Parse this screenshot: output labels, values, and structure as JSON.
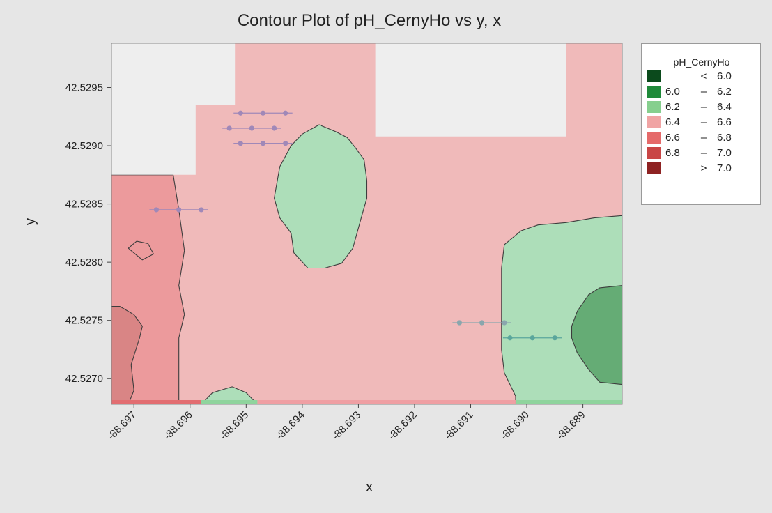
{
  "chart_data": {
    "type": "contour",
    "title": "Contour Plot of pH_CernyHo vs y, x",
    "xlabel": "x",
    "ylabel": "y",
    "xlim": [
      -88.6974,
      -88.6883
    ],
    "ylim": [
      42.52678,
      42.52988
    ],
    "x_ticks": [
      -88.697,
      -88.696,
      -88.695,
      -88.694,
      -88.693,
      -88.692,
      -88.691,
      -88.69,
      -88.689
    ],
    "x_tick_labels": [
      "-88.697",
      "-88.696",
      "-88.695",
      "-88.694",
      "-88.693",
      "-88.692",
      "-88.691",
      "-88.690",
      "-88.689"
    ],
    "y_ticks": [
      42.527,
      42.5275,
      42.528,
      42.5285,
      42.529,
      42.5295
    ],
    "y_tick_labels": [
      "42.5270",
      "42.5275",
      "42.5280",
      "42.5285",
      "42.5290",
      "42.5295"
    ],
    "legend": {
      "title": "pH_CernyHo",
      "position": "right",
      "entries": [
        {
          "lo": "",
          "sym": "<",
          "hi": "6.0",
          "color": "#0b4a1c"
        },
        {
          "lo": "6.0",
          "sym": "–",
          "hi": "6.2",
          "color": "#1f8a3a"
        },
        {
          "lo": "6.2",
          "sym": "–",
          "hi": "6.4",
          "color": "#86cf8e"
        },
        {
          "lo": "6.4",
          "sym": "–",
          "hi": "6.6",
          "color": "#f0a4a4"
        },
        {
          "lo": "6.6",
          "sym": "–",
          "hi": "6.8",
          "color": "#e56a6a"
        },
        {
          "lo": "6.8",
          "sym": "–",
          "hi": "7.0",
          "color": "#c94646"
        },
        {
          "lo": "",
          "sym": ">",
          "hi": "7.0",
          "color": "#8e2222"
        }
      ]
    },
    "regions": [
      {
        "level": "6.4 – 6.6",
        "color": "#f0baba",
        "polygon": [
          [
            -88.6974,
            42.52678
          ],
          [
            -88.6883,
            42.52678
          ],
          [
            -88.6883,
            42.52988
          ],
          [
            -88.6974,
            42.52988
          ]
        ]
      },
      {
        "level": "6.6 – 6.8",
        "color": "#ec9a9c",
        "polygon": [
          [
            -88.6974,
            42.52678
          ],
          [
            -88.6962,
            42.52678
          ],
          [
            -88.6962,
            42.52735
          ],
          [
            -88.6961,
            42.52755
          ],
          [
            -88.6962,
            42.5278
          ],
          [
            -88.6961,
            42.5281
          ],
          [
            -88.6962,
            42.52845
          ],
          [
            -88.6963,
            42.52875
          ],
          [
            -88.6974,
            42.52875
          ]
        ]
      },
      {
        "level": "6.6 – 6.8",
        "color": "#ec9a9c",
        "polygon": [
          [
            -88.6971,
            42.52812
          ],
          [
            -88.69695,
            42.52818
          ],
          [
            -88.69675,
            42.52816
          ],
          [
            -88.69665,
            42.52807
          ],
          [
            -88.69685,
            42.52802
          ],
          [
            -88.697,
            42.52808
          ]
        ]
      },
      {
        "level": "6.8 – 7.0",
        "color": "#d98585",
        "polygon": [
          [
            -88.6974,
            42.52678
          ],
          [
            -88.6971,
            42.52678
          ],
          [
            -88.697,
            42.5269
          ],
          [
            -88.69705,
            42.52712
          ],
          [
            -88.6969,
            42.52735
          ],
          [
            -88.69685,
            42.52745
          ],
          [
            -88.697,
            42.52755
          ],
          [
            -88.69725,
            42.52762
          ],
          [
            -88.6974,
            42.52762
          ]
        ]
      },
      {
        "level": "6.2 – 6.4",
        "color": "#addeb9",
        "polygon": [
          [
            -88.6937,
            42.52918
          ],
          [
            -88.6934,
            42.52912
          ],
          [
            -88.6932,
            42.52907
          ],
          [
            -88.69305,
            42.52898
          ],
          [
            -88.6929,
            42.52888
          ],
          [
            -88.69285,
            42.5287
          ],
          [
            -88.69285,
            42.52855
          ],
          [
            -88.69295,
            42.52838
          ],
          [
            -88.6931,
            42.52812
          ],
          [
            -88.6933,
            42.52799
          ],
          [
            -88.6936,
            42.52795
          ],
          [
            -88.6939,
            42.52795
          ],
          [
            -88.69415,
            42.52808
          ],
          [
            -88.6942,
            42.52825
          ],
          [
            -88.6944,
            42.52838
          ],
          [
            -88.6945,
            42.52855
          ],
          [
            -88.6944,
            42.52882
          ],
          [
            -88.6942,
            42.529
          ],
          [
            -88.694,
            42.5291
          ]
        ]
      },
      {
        "level": "6.2 – 6.4",
        "color": "#addeb9",
        "polygon": [
          [
            -88.6883,
            42.5284
          ],
          [
            -88.6888,
            42.52838
          ],
          [
            -88.6893,
            42.52834
          ],
          [
            -88.6898,
            42.52832
          ],
          [
            -88.6901,
            42.52827
          ],
          [
            -88.6904,
            42.52815
          ],
          [
            -88.69045,
            42.52795
          ],
          [
            -88.69045,
            42.5276
          ],
          [
            -88.69045,
            42.52725
          ],
          [
            -88.6904,
            42.52705
          ],
          [
            -88.6902,
            42.52685
          ],
          [
            -88.6902,
            42.52678
          ],
          [
            -88.6883,
            42.52678
          ]
        ]
      },
      {
        "level": "6.0 – 6.2",
        "color": "#65ac75",
        "polygon": [
          [
            -88.6883,
            42.5278
          ],
          [
            -88.6887,
            42.52778
          ],
          [
            -88.6889,
            42.52772
          ],
          [
            -88.6891,
            42.52758
          ],
          [
            -88.6892,
            42.52745
          ],
          [
            -88.6892,
            42.52735
          ],
          [
            -88.6891,
            42.52722
          ],
          [
            -88.6889,
            42.52708
          ],
          [
            -88.6887,
            42.52697
          ],
          [
            -88.6883,
            42.52695
          ]
        ]
      },
      {
        "level": "6.2 – 6.4",
        "color": "#addeb9",
        "polygon": [
          [
            -88.6958,
            42.52678
          ],
          [
            -88.6956,
            42.52688
          ],
          [
            -88.69525,
            42.52693
          ],
          [
            -88.695,
            42.52688
          ],
          [
            -88.6948,
            42.52678
          ]
        ]
      }
    ],
    "bottom_band": [
      {
        "x_from": -88.6974,
        "x_to": -88.6958,
        "color": "#e26d71"
      },
      {
        "x_from": -88.6958,
        "x_to": -88.6948,
        "color": "#8fd49d"
      },
      {
        "x_from": -88.6948,
        "x_to": -88.6902,
        "color": "#ef9fa3"
      },
      {
        "x_from": -88.6902,
        "x_to": -88.6883,
        "color": "#8fd49d"
      }
    ],
    "masked_regions": [
      {
        "color": "#eeeeee",
        "polygon": [
          [
            -88.6974,
            42.52988
          ],
          [
            -88.6952,
            42.52988
          ],
          [
            -88.6952,
            42.52935
          ],
          [
            -88.6959,
            42.52935
          ],
          [
            -88.6959,
            42.52875
          ],
          [
            -88.6974,
            42.52875
          ]
        ]
      },
      {
        "color": "#eeeeee",
        "polygon": [
          [
            -88.6927,
            42.52988
          ],
          [
            -88.6893,
            42.52988
          ],
          [
            -88.6893,
            42.52908
          ],
          [
            -88.6927,
            42.52908
          ]
        ]
      }
    ],
    "sample_rows": [
      {
        "y": 42.52928,
        "x": [
          -88.6951,
          -88.6947,
          -88.6943
        ],
        "color": "#a088b8"
      },
      {
        "y": 42.52915,
        "x": [
          -88.6953,
          -88.6949,
          -88.6945
        ],
        "color": "#a088b8"
      },
      {
        "y": 42.52902,
        "x": [
          -88.6951,
          -88.6947,
          -88.6943
        ],
        "color": "#a088b8"
      },
      {
        "y": 42.52845,
        "x": [
          -88.6966,
          -88.6962,
          -88.6958
        ],
        "color": "#a088b8"
      },
      {
        "y": 42.52748,
        "x": [
          -88.6912,
          -88.6908,
          -88.6904
        ],
        "color": "#8aa6ad"
      },
      {
        "y": 42.52735,
        "x": [
          -88.6903,
          -88.6899,
          -88.6895
        ],
        "color": "#5aa69c"
      }
    ]
  }
}
